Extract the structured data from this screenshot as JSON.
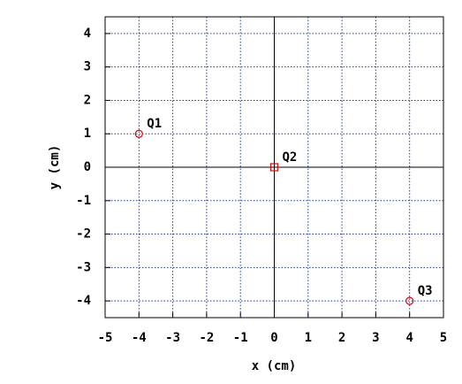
{
  "chart_data": {
    "type": "scatter",
    "x_label": "x (cm)",
    "y_label": "y (cm)",
    "x": [
      -4,
      0,
      4
    ],
    "values": [
      1,
      0,
      -4
    ],
    "point_labels": [
      "Q1",
      "Q2",
      "Q3"
    ],
    "markers": [
      "circle",
      "square",
      "circle"
    ],
    "color": "#e00000",
    "grid_color": "#1a3fa0",
    "xlim": [
      -5,
      5
    ],
    "ylim": [
      -4.5,
      4.5
    ],
    "xticks": [
      -5,
      -4,
      -3,
      -2,
      -1,
      0,
      1,
      2,
      3,
      4,
      5
    ],
    "yticks": [
      -4,
      -3,
      -2,
      -1,
      0,
      1,
      2,
      3,
      4
    ],
    "grid": true
  }
}
